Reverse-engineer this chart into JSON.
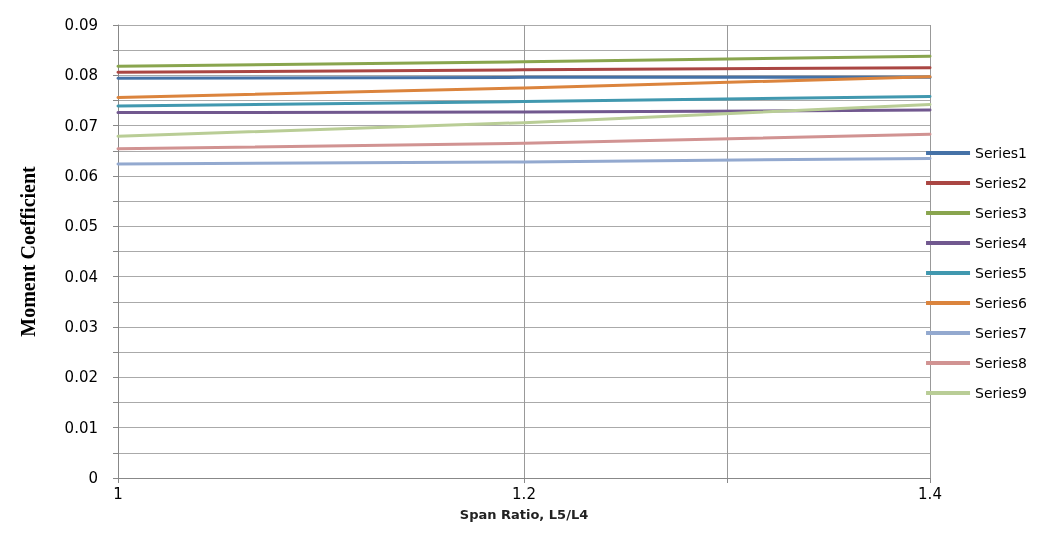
{
  "chart_data": {
    "type": "line",
    "xlabel": "Span Ratio, L5/L4",
    "ylabel": "Moment Coefficient",
    "x": [
      1,
      1.2,
      1.4
    ],
    "xlim": [
      1,
      1.4
    ],
    "xticks": [
      1,
      1.2,
      {
        "value": 1.3,
        "label": null
      },
      1.4
    ],
    "ylim": [
      0,
      0.09
    ],
    "yticks": [
      0,
      {
        "value": 0.005,
        "label": null
      },
      0.01,
      {
        "value": 0.015,
        "label": null
      },
      0.02,
      {
        "value": 0.025,
        "label": null
      },
      0.03,
      {
        "value": 0.035,
        "label": null
      },
      0.04,
      {
        "value": 0.045,
        "label": null
      },
      0.05,
      {
        "value": 0.055,
        "label": null
      },
      0.06,
      {
        "value": 0.065,
        "label": null
      },
      0.07,
      {
        "value": 0.075,
        "label": null
      },
      0.08,
      {
        "value": 0.085,
        "label": null
      },
      0.09
    ],
    "grid": true,
    "legend": "right",
    "marker": "none",
    "line_style": "solid",
    "series": [
      {
        "name": "Series1",
        "color": "#4572a7",
        "values": [
          0.0794,
          0.0796,
          0.0796
        ]
      },
      {
        "name": "Series2",
        "color": "#aa4643",
        "values": [
          0.0806,
          0.0811,
          0.0815
        ]
      },
      {
        "name": "Series3",
        "color": "#89a54e",
        "values": [
          0.0818,
          0.0827,
          0.0838
        ]
      },
      {
        "name": "Series4",
        "color": "#71588f",
        "values": [
          0.0726,
          0.0727,
          0.0731
        ]
      },
      {
        "name": "Series5",
        "color": "#4198af",
        "values": [
          0.0739,
          0.0748,
          0.0758
        ]
      },
      {
        "name": "Series6",
        "color": "#db843d",
        "values": [
          0.0756,
          0.0775,
          0.0797
        ]
      },
      {
        "name": "Series7",
        "color": "#93a9cf",
        "values": [
          0.0624,
          0.0628,
          0.0635
        ]
      },
      {
        "name": "Series8",
        "color": "#d19392",
        "values": [
          0.0654,
          0.0665,
          0.0683
        ]
      },
      {
        "name": "Series9",
        "color": "#b9cd96",
        "values": [
          0.0679,
          0.0706,
          0.0742
        ]
      }
    ]
  }
}
